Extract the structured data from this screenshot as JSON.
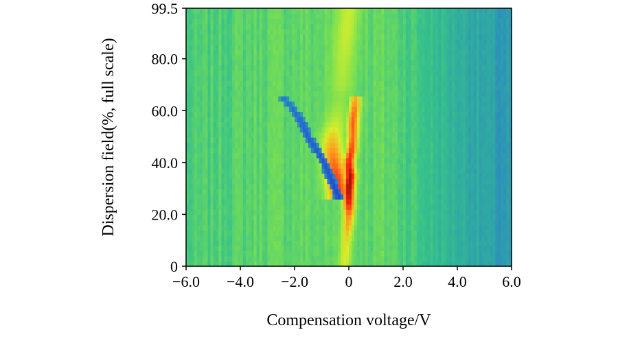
{
  "chart_data": {
    "type": "heatmap",
    "title": "",
    "xlabel": "Compensation voltage/V",
    "ylabel": "Dispersion field(%, full scale)",
    "xlim": [
      -6.0,
      6.0
    ],
    "ylim": [
      0,
      99.5
    ],
    "x_ticks": [
      -6.0,
      -4.0,
      -2.0,
      0,
      2.0,
      4.0,
      6.0
    ],
    "x_tick_labels": [
      "−6.0",
      "−4.0",
      "−2.0",
      "0",
      "2.0",
      "4.0",
      "6.0"
    ],
    "y_ticks": [
      0,
      20.0,
      40.0,
      60.0,
      80.0,
      99.5
    ],
    "y_tick_labels": [
      "0",
      "20.0",
      "40.0",
      "60.0",
      "80.0",
      "99.5"
    ],
    "grid": false,
    "colormap": [
      "#1c3fc9",
      "#2a78cf",
      "#2fa3a8",
      "#37c28a",
      "#7de14f",
      "#d9ee2b",
      "#ff9a20",
      "#ff2a12",
      "#9c0f05"
    ],
    "background_intensity_range": [
      0.22,
      0.45
    ],
    "features": [
      {
        "name": "main peak ridge",
        "points": [
          {
            "dispersion": 0,
            "cv": -0.15,
            "intensity": 0.62
          },
          {
            "dispersion": 10,
            "cv": -0.1,
            "intensity": 0.66
          },
          {
            "dispersion": 20,
            "cv": 0.0,
            "intensity": 0.78
          },
          {
            "dispersion": 25,
            "cv": 0.0,
            "intensity": 0.93
          },
          {
            "dispersion": 30,
            "cv": 0.0,
            "intensity": 1.0
          },
          {
            "dispersion": 35,
            "cv": 0.05,
            "intensity": 0.98
          },
          {
            "dispersion": 40,
            "cv": 0.0,
            "intensity": 0.9
          },
          {
            "dispersion": 45,
            "cv": 0.1,
            "intensity": 0.85
          },
          {
            "dispersion": 50,
            "cv": 0.15,
            "intensity": 0.8
          },
          {
            "dispersion": 55,
            "cv": 0.15,
            "intensity": 0.82
          },
          {
            "dispersion": 60,
            "cv": 0.2,
            "intensity": 0.8
          },
          {
            "dispersion": 65,
            "cv": 0.25,
            "intensity": 0.72
          }
        ]
      },
      {
        "name": "secondary branch",
        "points": [
          {
            "dispersion": 25,
            "cv": -0.35,
            "intensity": 0.82
          },
          {
            "dispersion": 30,
            "cv": -0.4,
            "intensity": 0.86
          },
          {
            "dispersion": 35,
            "cv": -0.45,
            "intensity": 0.84
          },
          {
            "dispersion": 40,
            "cv": -0.55,
            "intensity": 0.8
          },
          {
            "dispersion": 45,
            "cv": -0.6,
            "intensity": 0.75
          },
          {
            "dispersion": 50,
            "cv": -0.6,
            "intensity": 0.68
          },
          {
            "dispersion": 55,
            "cv": -0.5,
            "intensity": 0.6
          },
          {
            "dispersion": 60,
            "cv": -0.4,
            "intensity": 0.55
          },
          {
            "dispersion": 65,
            "cv": -0.3,
            "intensity": 0.52
          },
          {
            "dispersion": 70,
            "cv": -0.25,
            "intensity": 0.56
          },
          {
            "dispersion": 80,
            "cv": -0.2,
            "intensity": 0.58
          },
          {
            "dispersion": 90,
            "cv": -0.1,
            "intensity": 0.6
          },
          {
            "dispersion": 99.5,
            "cv": 0.0,
            "intensity": 0.6
          }
        ]
      },
      {
        "name": "dark streak",
        "points": [
          {
            "dispersion": 25,
            "cv": -0.3,
            "intensity": 0.02
          },
          {
            "dispersion": 30,
            "cv": -0.5,
            "intensity": 0.03
          },
          {
            "dispersion": 35,
            "cv": -0.7,
            "intensity": 0.04
          },
          {
            "dispersion": 40,
            "cv": -0.9,
            "intensity": 0.05
          },
          {
            "dispersion": 45,
            "cv": -1.2,
            "intensity": 0.06
          },
          {
            "dispersion": 50,
            "cv": -1.5,
            "intensity": 0.07
          },
          {
            "dispersion": 55,
            "cv": -1.7,
            "intensity": 0.08
          },
          {
            "dispersion": 60,
            "cv": -2.0,
            "intensity": 0.1
          },
          {
            "dispersion": 65,
            "cv": -2.4,
            "intensity": 0.12
          }
        ]
      }
    ]
  }
}
